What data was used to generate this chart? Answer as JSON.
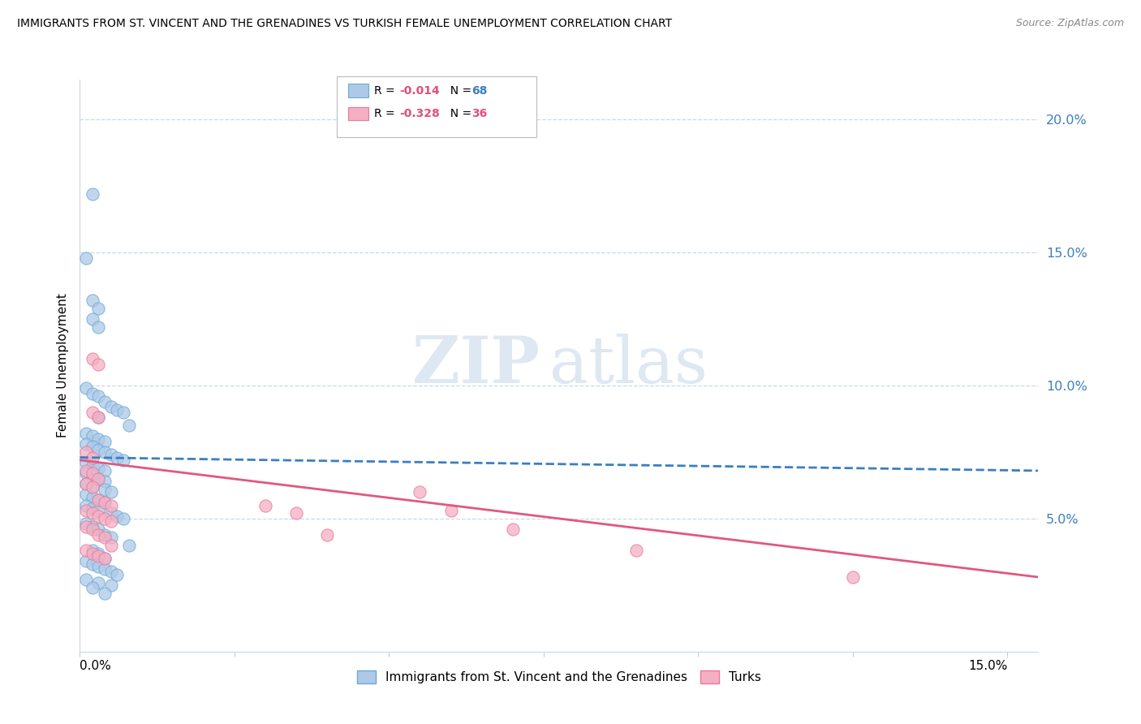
{
  "title": "IMMIGRANTS FROM ST. VINCENT AND THE GRENADINES VS TURKISH FEMALE UNEMPLOYMENT CORRELATION CHART",
  "source": "Source: ZipAtlas.com",
  "ylabel": "Female Unemployment",
  "right_yticks": [
    "20.0%",
    "15.0%",
    "10.0%",
    "5.0%"
  ],
  "right_ytick_vals": [
    0.2,
    0.15,
    0.1,
    0.05
  ],
  "watermark_zip": "ZIP",
  "watermark_atlas": "atlas",
  "legend_blue_r": "-0.014",
  "legend_blue_n": "68",
  "legend_pink_r": "-0.328",
  "legend_pink_n": "36",
  "blue_color": "#adc9e8",
  "pink_color": "#f5afc3",
  "blue_edge_color": "#6aaad4",
  "pink_edge_color": "#e8789a",
  "blue_line_color": "#3a7fc1",
  "pink_line_color": "#e05880",
  "blue_scatter": [
    [
      0.002,
      0.172
    ],
    [
      0.001,
      0.148
    ],
    [
      0.002,
      0.132
    ],
    [
      0.003,
      0.129
    ],
    [
      0.002,
      0.125
    ],
    [
      0.003,
      0.122
    ],
    [
      0.001,
      0.099
    ],
    [
      0.002,
      0.097
    ],
    [
      0.003,
      0.096
    ],
    [
      0.004,
      0.094
    ],
    [
      0.005,
      0.092
    ],
    [
      0.006,
      0.091
    ],
    [
      0.007,
      0.09
    ],
    [
      0.003,
      0.088
    ],
    [
      0.008,
      0.085
    ],
    [
      0.001,
      0.082
    ],
    [
      0.002,
      0.081
    ],
    [
      0.003,
      0.08
    ],
    [
      0.004,
      0.079
    ],
    [
      0.001,
      0.078
    ],
    [
      0.002,
      0.077
    ],
    [
      0.003,
      0.076
    ],
    [
      0.004,
      0.075
    ],
    [
      0.005,
      0.074
    ],
    [
      0.006,
      0.073
    ],
    [
      0.007,
      0.072
    ],
    [
      0.001,
      0.071
    ],
    [
      0.002,
      0.07
    ],
    [
      0.003,
      0.069
    ],
    [
      0.004,
      0.068
    ],
    [
      0.001,
      0.067
    ],
    [
      0.002,
      0.066
    ],
    [
      0.003,
      0.065
    ],
    [
      0.004,
      0.064
    ],
    [
      0.001,
      0.063
    ],
    [
      0.002,
      0.062
    ],
    [
      0.004,
      0.061
    ],
    [
      0.005,
      0.06
    ],
    [
      0.001,
      0.059
    ],
    [
      0.002,
      0.058
    ],
    [
      0.003,
      0.057
    ],
    [
      0.004,
      0.056
    ],
    [
      0.001,
      0.055
    ],
    [
      0.002,
      0.054
    ],
    [
      0.003,
      0.053
    ],
    [
      0.005,
      0.052
    ],
    [
      0.006,
      0.051
    ],
    [
      0.007,
      0.05
    ],
    [
      0.001,
      0.048
    ],
    [
      0.002,
      0.047
    ],
    [
      0.003,
      0.046
    ],
    [
      0.004,
      0.044
    ],
    [
      0.005,
      0.043
    ],
    [
      0.008,
      0.04
    ],
    [
      0.002,
      0.038
    ],
    [
      0.003,
      0.037
    ],
    [
      0.004,
      0.035
    ],
    [
      0.001,
      0.034
    ],
    [
      0.002,
      0.033
    ],
    [
      0.003,
      0.032
    ],
    [
      0.004,
      0.031
    ],
    [
      0.005,
      0.03
    ],
    [
      0.006,
      0.029
    ],
    [
      0.001,
      0.027
    ],
    [
      0.003,
      0.026
    ],
    [
      0.005,
      0.025
    ],
    [
      0.002,
      0.024
    ],
    [
      0.004,
      0.022
    ]
  ],
  "pink_scatter": [
    [
      0.002,
      0.11
    ],
    [
      0.003,
      0.108
    ],
    [
      0.002,
      0.09
    ],
    [
      0.003,
      0.088
    ],
    [
      0.001,
      0.075
    ],
    [
      0.002,
      0.073
    ],
    [
      0.001,
      0.068
    ],
    [
      0.002,
      0.067
    ],
    [
      0.003,
      0.065
    ],
    [
      0.001,
      0.063
    ],
    [
      0.002,
      0.062
    ],
    [
      0.003,
      0.057
    ],
    [
      0.004,
      0.056
    ],
    [
      0.005,
      0.055
    ],
    [
      0.001,
      0.053
    ],
    [
      0.002,
      0.052
    ],
    [
      0.003,
      0.051
    ],
    [
      0.004,
      0.05
    ],
    [
      0.005,
      0.049
    ],
    [
      0.001,
      0.047
    ],
    [
      0.002,
      0.046
    ],
    [
      0.003,
      0.044
    ],
    [
      0.004,
      0.043
    ],
    [
      0.005,
      0.04
    ],
    [
      0.001,
      0.038
    ],
    [
      0.002,
      0.037
    ],
    [
      0.003,
      0.036
    ],
    [
      0.004,
      0.035
    ],
    [
      0.03,
      0.055
    ],
    [
      0.035,
      0.052
    ],
    [
      0.04,
      0.044
    ],
    [
      0.055,
      0.06
    ],
    [
      0.06,
      0.053
    ],
    [
      0.07,
      0.046
    ],
    [
      0.09,
      0.038
    ],
    [
      0.125,
      0.028
    ]
  ],
  "blue_trend_x": [
    0.0,
    0.155
  ],
  "blue_trend_y": [
    0.073,
    0.068
  ],
  "pink_trend_x": [
    0.0,
    0.155
  ],
  "pink_trend_y": [
    0.072,
    0.028
  ],
  "xlim": [
    0.0,
    0.155
  ],
  "ylim": [
    0.0,
    0.215
  ],
  "xtick_positions": [
    0.0,
    0.025,
    0.05,
    0.075,
    0.1,
    0.125,
    0.15
  ]
}
